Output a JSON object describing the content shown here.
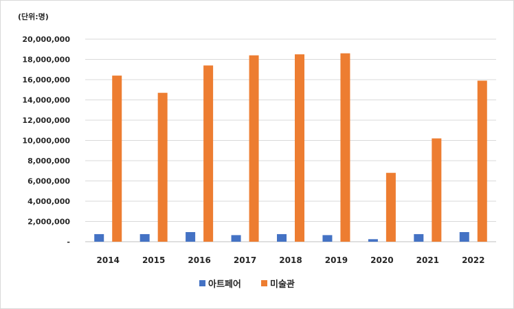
{
  "chart_data": {
    "type": "bar",
    "unit_label": "(단위:명)",
    "categories": [
      "2014",
      "2015",
      "2016",
      "2017",
      "2018",
      "2019",
      "2020",
      "2021",
      "2022"
    ],
    "series": [
      {
        "name": "아트페어",
        "color": "#4472C4",
        "values": [
          750000,
          750000,
          950000,
          650000,
          750000,
          650000,
          250000,
          750000,
          950000
        ]
      },
      {
        "name": "미술관",
        "color": "#ED7D31",
        "values": [
          16400000,
          14700000,
          17400000,
          18400000,
          18500000,
          18600000,
          6800000,
          10200000,
          15900000
        ]
      }
    ],
    "ylim": [
      0,
      20000000
    ],
    "y_ticks": [
      {
        "value": 0,
        "label": "-"
      },
      {
        "value": 2000000,
        "label": "2,000,000"
      },
      {
        "value": 4000000,
        "label": "4,000,000"
      },
      {
        "value": 6000000,
        "label": "6,000,000"
      },
      {
        "value": 8000000,
        "label": "8,000,000"
      },
      {
        "value": 10000000,
        "label": "10,000,000"
      },
      {
        "value": 12000000,
        "label": "12,000,000"
      },
      {
        "value": 14000000,
        "label": "14,000,000"
      },
      {
        "value": 16000000,
        "label": "16,000,000"
      },
      {
        "value": 18000000,
        "label": "18,000,000"
      },
      {
        "value": 20000000,
        "label": "20,000,000"
      }
    ],
    "grid": true,
    "legend_position": "bottom"
  }
}
